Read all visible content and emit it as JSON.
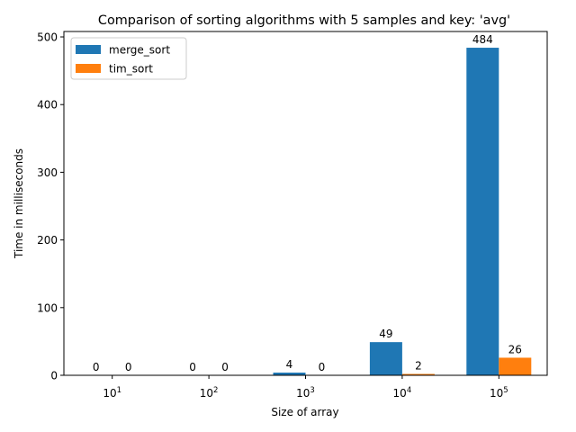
{
  "chart_data": {
    "type": "bar",
    "title": "Comparison of sorting algorithms with 5 samples and key: 'avg'",
    "xlabel": "Size of array",
    "ylabel": "Time in milliseconds",
    "categories": [
      {
        "base": "10",
        "exp": "1"
      },
      {
        "base": "10",
        "exp": "2"
      },
      {
        "base": "10",
        "exp": "3"
      },
      {
        "base": "10",
        "exp": "4"
      },
      {
        "base": "10",
        "exp": "5"
      }
    ],
    "series": [
      {
        "name": "merge_sort",
        "color": "#1f77b4",
        "values": [
          0,
          0,
          4,
          49,
          484
        ],
        "labels": [
          "0",
          "0",
          "4",
          "49",
          "484"
        ]
      },
      {
        "name": "tim_sort",
        "color": "#ff7f0e",
        "values": [
          0,
          0,
          0,
          2,
          26
        ],
        "labels": [
          "0",
          "0",
          "0",
          "2",
          "26"
        ]
      }
    ],
    "ylim": [
      0,
      508
    ],
    "yticks": [
      0,
      100,
      200,
      300,
      400,
      500
    ],
    "ytick_labels": [
      "0",
      "100",
      "200",
      "300",
      "400",
      "500"
    ],
    "grid": false,
    "legend": "top-left"
  }
}
